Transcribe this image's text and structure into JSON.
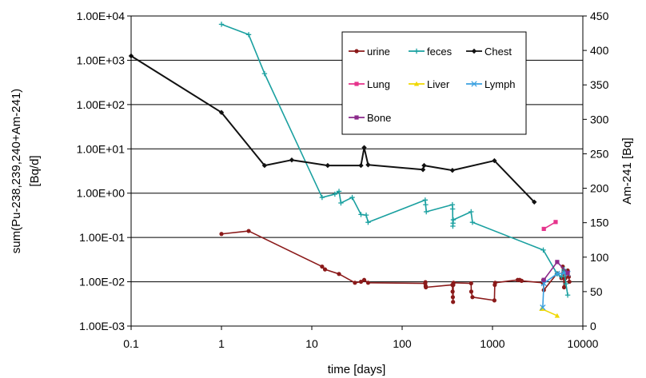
{
  "chart_data": {
    "type": "line",
    "xlabel": "time [days]",
    "ylabel_left_line1": "sum(Pu-238,239,240+Am-241)",
    "ylabel_left_line2": "[Bq/d]",
    "ylabel_right": "Am-241 [Bq]",
    "x_scale": "log",
    "xlim": [
      0.1,
      10000
    ],
    "y_left_scale": "log",
    "y_left_lim": [
      0.001,
      10000
    ],
    "y_right_lim": [
      0,
      450
    ],
    "grid": "horizontal major lines on left axis",
    "legend_position": "top-right",
    "x_ticks": [
      "0.1",
      "1",
      "10",
      "100",
      "1000",
      "10000"
    ],
    "y_left_ticks": [
      "1.00E-03",
      "1.00E-02",
      "1.00E-01",
      "1.00E+00",
      "1.00E+01",
      "1.00E+02",
      "1.00E+03",
      "1.00E+04"
    ],
    "y_right_ticks": [
      "0",
      "50",
      "100",
      "150",
      "200",
      "250",
      "300",
      "350",
      "400",
      "450"
    ],
    "series": [
      {
        "name": "urine",
        "axis": "left",
        "color": "#8b1a1a",
        "marker": "circle",
        "points": [
          [
            1,
            0.12
          ],
          [
            2,
            0.14
          ],
          [
            13,
            0.022
          ],
          [
            14,
            0.019
          ],
          [
            20,
            0.015
          ],
          [
            30,
            0.0095
          ],
          [
            35,
            0.01
          ],
          [
            38,
            0.011
          ],
          [
            42,
            0.0095
          ],
          [
            180,
            0.0092
          ],
          [
            181,
            0.0098
          ],
          [
            182,
            0.008
          ],
          [
            183,
            0.0075
          ],
          [
            360,
            0.0085
          ],
          [
            362,
            0.006
          ],
          [
            364,
            0.0045
          ],
          [
            366,
            0.0035
          ],
          [
            368,
            0.0085
          ],
          [
            370,
            0.0095
          ],
          [
            580,
            0.0092
          ],
          [
            582,
            0.006
          ],
          [
            600,
            0.0045
          ],
          [
            1050,
            0.0038
          ],
          [
            1060,
            0.0085
          ],
          [
            1070,
            0.0095
          ],
          [
            1900,
            0.011
          ],
          [
            2000,
            0.011
          ],
          [
            2100,
            0.0105
          ],
          [
            3600,
            0.0095
          ],
          [
            3650,
            0.011
          ],
          [
            3700,
            0.0065
          ],
          [
            5200,
            0.0155
          ],
          [
            5800,
            0.012
          ],
          [
            6000,
            0.022
          ],
          [
            6200,
            0.0075
          ],
          [
            6400,
            0.012
          ],
          [
            6800,
            0.018
          ],
          [
            7000,
            0.013
          ],
          [
            7100,
            0.01
          ]
        ]
      },
      {
        "name": "feces",
        "axis": "left",
        "color": "#1aa0a0",
        "marker": "plus",
        "points": [
          [
            1,
            6500
          ],
          [
            2,
            3800
          ],
          [
            3,
            500
          ],
          [
            13,
            0.8
          ],
          [
            18,
            0.95
          ],
          [
            20,
            1.1
          ],
          [
            21,
            0.6
          ],
          [
            28,
            0.8
          ],
          [
            35,
            0.33
          ],
          [
            40,
            0.32
          ],
          [
            42,
            0.22
          ],
          [
            180,
            0.7
          ],
          [
            182,
            0.55
          ],
          [
            185,
            0.38
          ],
          [
            360,
            0.55
          ],
          [
            362,
            0.44
          ],
          [
            364,
            0.18
          ],
          [
            366,
            0.21
          ],
          [
            368,
            0.25
          ],
          [
            580,
            0.38
          ],
          [
            600,
            0.22
          ],
          [
            3650,
            0.052
          ],
          [
            5200,
            0.015
          ],
          [
            5800,
            0.013
          ],
          [
            6200,
            0.019
          ],
          [
            6500,
            0.009
          ],
          [
            6800,
            0.005
          ]
        ]
      },
      {
        "name": "Chest",
        "axis": "right",
        "color": "#111111",
        "marker": "diamond",
        "points": [
          [
            0.1,
            392
          ],
          [
            1,
            310
          ],
          [
            3,
            233
          ],
          [
            6,
            241
          ],
          [
            15,
            233
          ],
          [
            35,
            233
          ],
          [
            38,
            259
          ],
          [
            42,
            234
          ],
          [
            170,
            227
          ],
          [
            175,
            233
          ],
          [
            360,
            226
          ],
          [
            1050,
            240
          ],
          [
            2900,
            180
          ]
        ]
      },
      {
        "name": "Lung",
        "axis": "right",
        "color": "#e6338c",
        "marker": "square",
        "points": [
          [
            3700,
            141
          ],
          [
            5000,
            151
          ]
        ]
      },
      {
        "name": "Liver",
        "axis": "right",
        "color": "#f0d800",
        "marker": "triangle",
        "points": [
          [
            3500,
            25
          ],
          [
            5200,
            15
          ]
        ]
      },
      {
        "name": "Lymph",
        "axis": "right",
        "color": "#3aa0e0",
        "marker": "x",
        "points": [
          [
            3600,
            27
          ],
          [
            3700,
            62
          ],
          [
            5200,
            76
          ],
          [
            6200,
            77
          ],
          [
            6800,
            76
          ]
        ]
      },
      {
        "name": "Bone",
        "axis": "right",
        "color": "#8b2a8b",
        "marker": "square",
        "points": [
          [
            3700,
            67
          ],
          [
            5200,
            93
          ],
          [
            6800,
            77
          ]
        ]
      }
    ]
  }
}
